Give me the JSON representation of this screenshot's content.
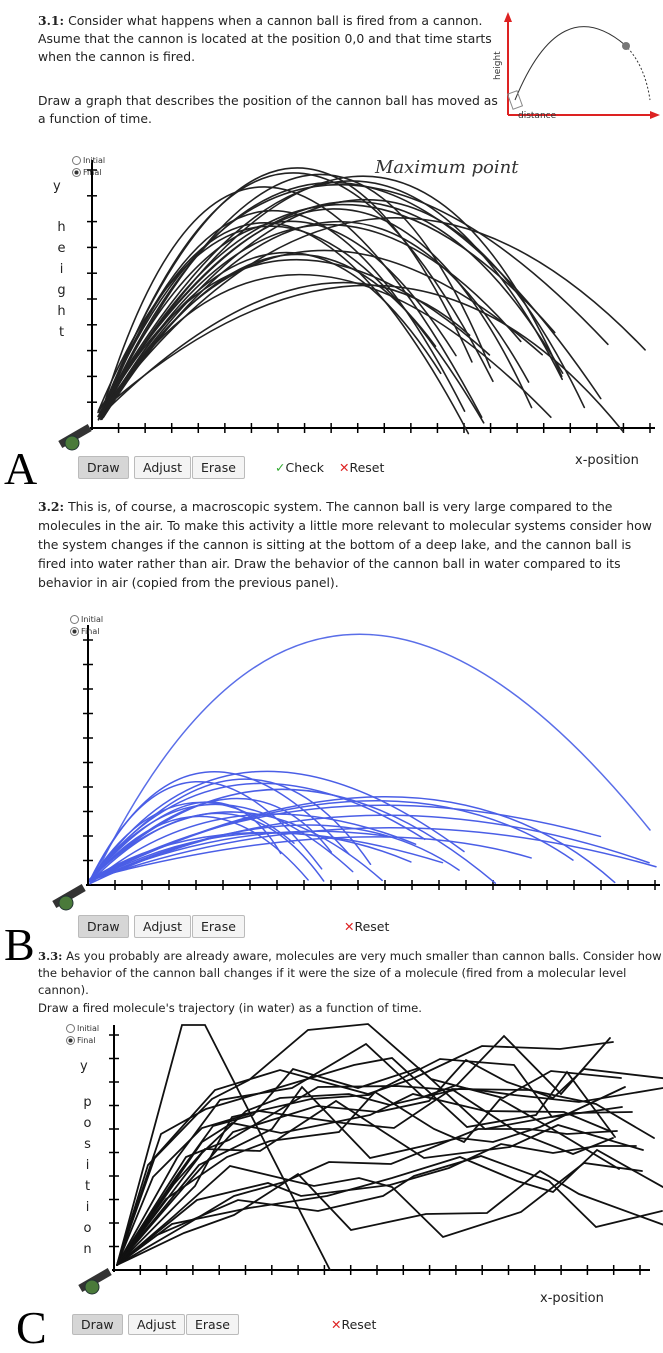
{
  "panels": [
    {
      "label": "A",
      "question_number": "3.1:",
      "question": "Consider what happens when a cannon ball is fired from a cannon. Asume that the cannon is located at the position 0,0 and that time starts when the cannon is fired.",
      "instruction": "Draw a graph that describes the position of the cannon ball has moved as a function of time.",
      "inset": {
        "y_label": "height",
        "x_label": "distance"
      },
      "radio": [
        "Initial",
        "Final"
      ],
      "y_label": "y",
      "y_word": "height",
      "x_label": "x-position",
      "annotation": "Maximum point",
      "buttons": [
        "Draw",
        "Adjust",
        "Erase",
        "Check",
        "Reset"
      ]
    },
    {
      "label": "B",
      "question_number": "3.2:",
      "question": "This is, of course, a macroscopic system. The cannon ball is very large compared to the molecules in the air. To make this activity a little more relevant to molecular systems consider how the system changes if the cannon is sitting at the bottom of a deep lake, and the cannon ball is fired into water rather than air.  Draw the behavior of the cannon ball in water compared to its behavior in air (copied from the previous panel).",
      "radio": [
        "Initial",
        "Final"
      ],
      "buttons": [
        "Draw",
        "Adjust",
        "Erase",
        "Reset"
      ]
    },
    {
      "label": "C",
      "question_number": "3.3:",
      "question": "As you probably are already aware, molecules are very much smaller than cannon balls. Consider how the behavior of the cannon ball changes if it were the size of a  molecule (fired from a molecular level cannon).",
      "instruction": "Draw a fired molecule's trajectory (in water) as a function of time.",
      "radio": [
        "Initial",
        "Final"
      ],
      "y_label": "y",
      "y_word": "position",
      "x_label": "x-position",
      "buttons": [
        "Draw",
        "Adjust",
        "Erase",
        "Reset"
      ]
    }
  ]
}
